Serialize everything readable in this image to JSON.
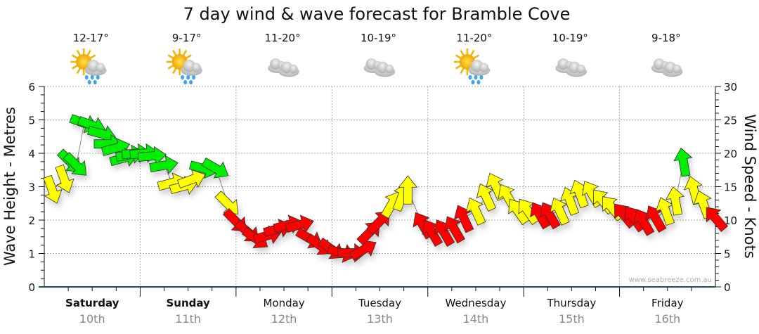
{
  "chart_data": {
    "type": "line",
    "title": "7 day wind & wave forecast for Bramble Cove",
    "ylabel_left": "Wave Height - Metres",
    "ylabel_right": "Wind Speed - Knots",
    "ylim_left": [
      0,
      6
    ],
    "ylim_right": [
      0,
      30
    ],
    "yticks_left": [
      "0",
      "1",
      "2",
      "3",
      "4",
      "5",
      "6"
    ],
    "yticks_right": [
      "0",
      "5",
      "10",
      "15",
      "20",
      "25",
      "30"
    ],
    "grid": true,
    "days": [
      {
        "day": "Saturday",
        "date": "10th",
        "temp": "12-17°",
        "icon": "sun-cloud-rain",
        "bold": true
      },
      {
        "day": "Sunday",
        "date": "11th",
        "temp": "9-17°",
        "icon": "sun-cloud-rain",
        "bold": true
      },
      {
        "day": "Monday",
        "date": "12th",
        "temp": "11-20°",
        "icon": "cloudy",
        "bold": false
      },
      {
        "day": "Tuesday",
        "date": "13th",
        "temp": "10-19°",
        "icon": "cloudy",
        "bold": false
      },
      {
        "day": "Wednesday",
        "date": "14th",
        "temp": "11-20°",
        "icon": "sun-cloud-rain",
        "bold": false
      },
      {
        "day": "Thursday",
        "date": "15th",
        "temp": "10-19°",
        "icon": "cloudy",
        "bold": false
      },
      {
        "day": "Friday",
        "date": "16th",
        "temp": "9-18°",
        "icon": "cloudy",
        "bold": false
      }
    ],
    "wind_color_thresholds": {
      "red_below": 11,
      "yellow_below": 17.5
    },
    "colors": {
      "red": "#ff0000",
      "yellow": "#ffff00",
      "green": "#00ee00",
      "axis": "#1f4e6e"
    },
    "wind": {
      "hours": [
        2,
        5,
        6.5,
        8,
        10,
        12,
        14.5,
        16,
        18,
        20,
        21.5,
        23,
        25,
        27,
        30,
        32,
        35,
        37,
        40,
        43,
        46,
        48,
        51,
        53,
        56,
        58.5,
        61,
        64,
        66.5,
        69,
        72,
        74.5,
        77,
        80,
        81.5,
        84,
        87,
        89.5,
        91,
        94.7,
        97,
        100,
        102.6,
        105,
        108,
        110.6,
        113,
        116,
        118.5,
        121,
        124,
        126.5,
        129,
        131.6,
        134,
        137,
        139.7,
        142,
        145,
        147.6,
        150,
        153,
        155.5,
        158,
        160,
        162.6,
        165,
        168
      ],
      "knots": [
        14.5,
        16.1,
        18.7,
        18.2,
        24.5,
        24.2,
        22.9,
        21.4,
        20.8,
        19.3,
        19.8,
        20,
        20,
        19.6,
        18.2,
        15.6,
        15.1,
        16.1,
        17.7,
        17.7,
        12.4,
        9.8,
        8.2,
        7.2,
        7.7,
        8.7,
        9.3,
        9.3,
        7.2,
        6.2,
        5.6,
        5.1,
        5.1,
        5.6,
        8.2,
        9.8,
        12.4,
        13.5,
        14.5,
        9.3,
        8.2,
        8.2,
        8.7,
        10.3,
        11.4,
        13.5,
        15.1,
        13.5,
        11.4,
        11.4,
        10.8,
        10.8,
        11.4,
        12.9,
        14,
        14,
        12.9,
        11.9,
        10.8,
        10.3,
        9.8,
        10.3,
        11.4,
        12.9,
        18.7,
        14.5,
        12.4,
        10.3
      ],
      "heading_deg": [
        70,
        70,
        45,
        45,
        20,
        20,
        15,
        0,
        -15,
        -15,
        -10,
        -5,
        -5,
        -5,
        -10,
        -15,
        -15,
        -20,
        15,
        30,
        45,
        45,
        40,
        35,
        -15,
        -15,
        -15,
        -15,
        30,
        35,
        35,
        15,
        0,
        -30,
        -45,
        -45,
        -60,
        -70,
        -90,
        -120,
        -120,
        -120,
        -120,
        -115,
        -115,
        -115,
        -115,
        -120,
        -125,
        -125,
        -120,
        -120,
        -115,
        -110,
        -110,
        -120,
        -130,
        -130,
        -130,
        -125,
        -120,
        -120,
        -110,
        -100,
        -100,
        -105,
        -110,
        -130
      ]
    },
    "watermark": "www.seabreeze.com.au"
  }
}
